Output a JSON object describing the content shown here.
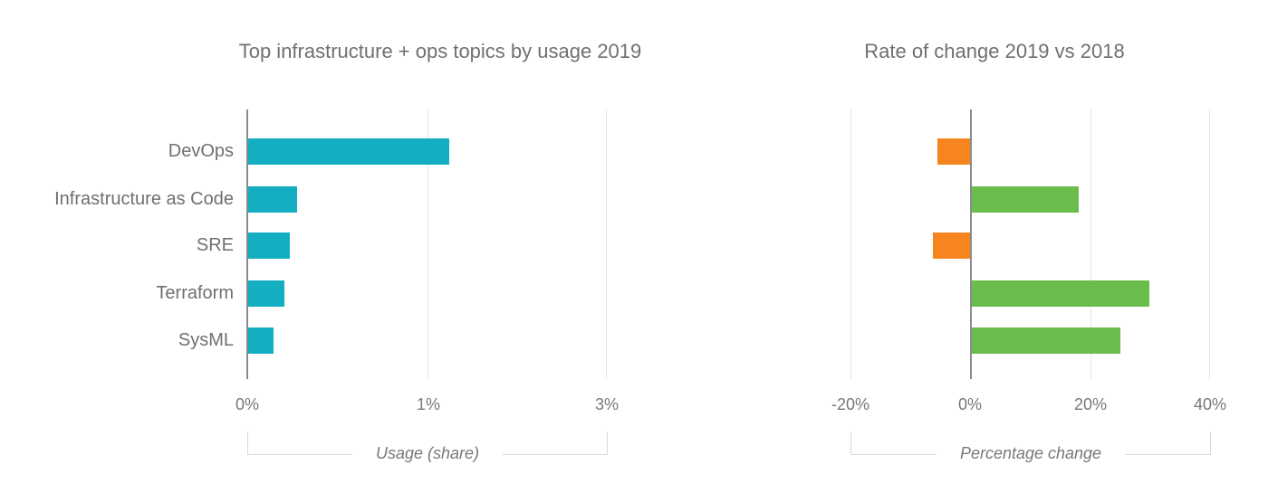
{
  "figure": {
    "background": "#ffffff",
    "text_color": "#6f7074",
    "tick_text_color": "#77787b",
    "grid_color": "#e4e4e4",
    "axis_line_color": "#8a8b8d",
    "bracket_color": "#d9d9d9"
  },
  "chart_data": [
    {
      "type": "bar",
      "orientation": "horizontal",
      "title": "Top infrastructure + ops topics by usage 2019",
      "categories": [
        "DevOps",
        "Infrastructure as Code",
        "SRE",
        "Terraform",
        "SysML"
      ],
      "values": [
        1.11,
        0.27,
        0.23,
        0.2,
        0.14
      ],
      "value_unit": "% share",
      "xlabel": "Usage (share)",
      "x_tick_labels": [
        "0%",
        "1%",
        "3%"
      ],
      "x_tick_values": [
        0,
        1,
        3
      ],
      "bar_color": "#14aec2",
      "grid": true,
      "legend": false
    },
    {
      "type": "bar",
      "orientation": "horizontal",
      "title": "Rate of change 2019 vs 2018",
      "categories": [
        "DevOps",
        "Infrastructure as Code",
        "SRE",
        "Terraform",
        "SysML"
      ],
      "values": [
        -5.4,
        17.8,
        -6.2,
        29.6,
        24.8
      ],
      "value_unit": "% change",
      "xlabel": "Percentage change",
      "x_tick_labels": [
        "-20%",
        "0%",
        "20%",
        "40%"
      ],
      "x_tick_values": [
        -20,
        0,
        20,
        40
      ],
      "xlim": [
        -20,
        40
      ],
      "positive_color": "#6bbd4b",
      "negative_color": "#f6851f",
      "grid": true,
      "legend": false
    }
  ]
}
